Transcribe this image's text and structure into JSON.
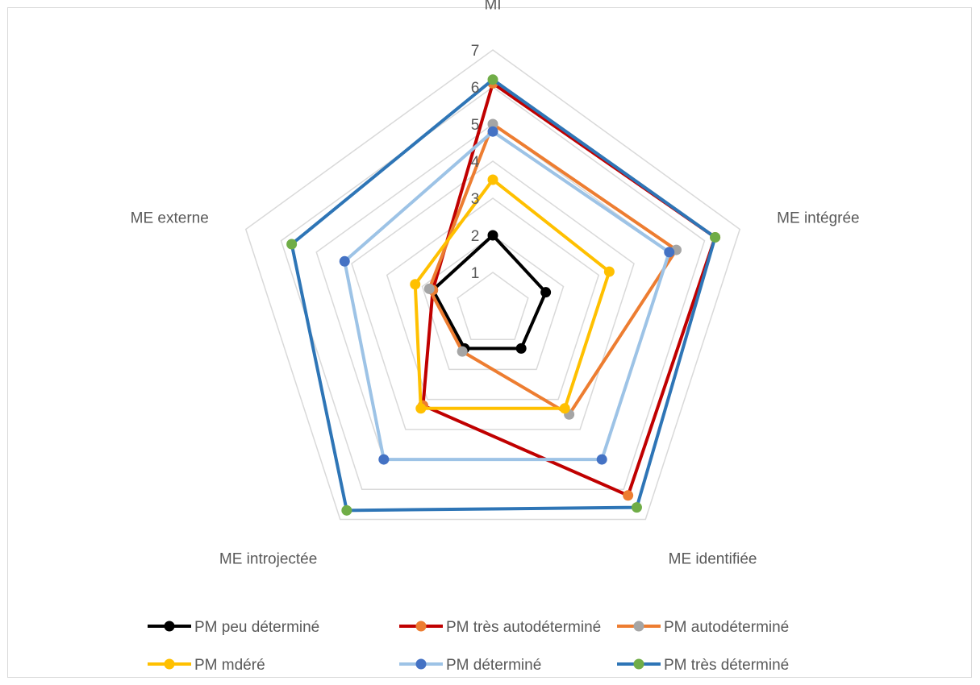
{
  "chart_data": {
    "type": "radar",
    "axes": [
      "MI",
      "ME intégrée",
      "ME identifiée",
      "ME introjectée",
      "ME externe"
    ],
    "rlim": [
      0,
      7
    ],
    "ticks": [
      "1",
      "2",
      "3",
      "4",
      "5",
      "6",
      "7"
    ],
    "grid": true,
    "legend_position": "bottom",
    "series": [
      {
        "name": "PM peu déterminé",
        "line_color": "#000000",
        "marker_color": "#000000",
        "values": [
          2.0,
          1.5,
          1.3,
          1.3,
          1.7
        ]
      },
      {
        "name": "PM très autodéterminé",
        "line_color": "#c00000",
        "marker_color": "#ed7d31",
        "values": [
          6.1,
          6.3,
          6.2,
          3.2,
          1.7
        ]
      },
      {
        "name": "PM autodéterminé",
        "line_color": "#ed7d31",
        "marker_color": "#a5a5a5",
        "values": [
          5.0,
          5.2,
          3.5,
          1.4,
          1.8
        ]
      },
      {
        "name": "PM mdéré",
        "line_color": "#ffc000",
        "marker_color": "#ffc000",
        "values": [
          3.5,
          3.3,
          3.3,
          3.3,
          2.2
        ]
      },
      {
        "name": "PM déterminé",
        "line_color": "#9dc3e6",
        "marker_color": "#4472c4",
        "values": [
          4.8,
          5.0,
          5.0,
          5.0,
          4.2
        ]
      },
      {
        "name": "PM très déterminé",
        "line_color": "#2e75b6",
        "marker_color": "#70ad47",
        "values": [
          6.2,
          6.3,
          6.6,
          6.7,
          5.7
        ]
      }
    ]
  }
}
